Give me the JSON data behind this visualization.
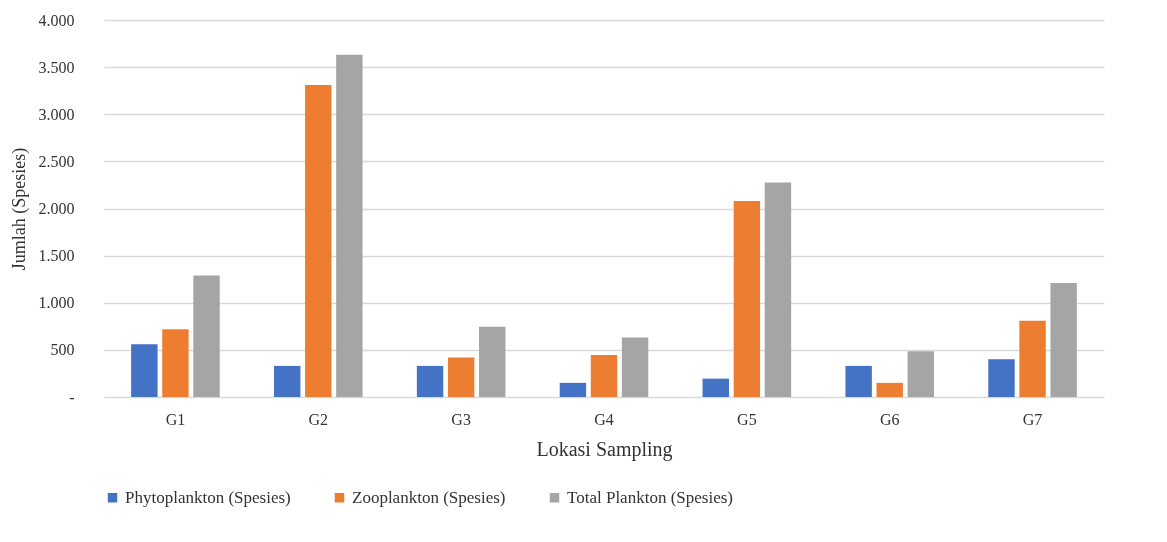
{
  "chart_data": {
    "type": "bar",
    "xlabel": "Lokasi Sampling",
    "ylabel": "Jumlah (Spesies)",
    "categories": [
      "G1",
      "G2",
      "G3",
      "G4",
      "G5",
      "G6",
      "G7"
    ],
    "series": [
      {
        "name": "Phytoplankton (Spesies)",
        "color": "#4472c4",
        "values": [
          560,
          330,
          330,
          150,
          195,
          330,
          400
        ]
      },
      {
        "name": "Zooplankton (Spesies)",
        "color": "#ed7d31",
        "values": [
          720,
          3310,
          420,
          445,
          2080,
          150,
          810
        ]
      },
      {
        "name": "Total Plankton (Spesies)",
        "color": "#a5a5a5",
        "values": [
          1290,
          3630,
          745,
          630,
          2275,
          485,
          1210
        ]
      }
    ],
    "ylim": [
      0,
      4000
    ],
    "yticks": [
      {
        "value": 0,
        "label": "-"
      },
      {
        "value": 500,
        "label": "500"
      },
      {
        "value": 1000,
        "label": "1.000"
      },
      {
        "value": 1500,
        "label": "1.500"
      },
      {
        "value": 2000,
        "label": "2.000"
      },
      {
        "value": 2500,
        "label": "2.500"
      },
      {
        "value": 3000,
        "label": "3.000"
      },
      {
        "value": 3500,
        "label": "3.500"
      },
      {
        "value": 4000,
        "label": "4.000"
      }
    ],
    "grid": "y",
    "legend": "bottom"
  }
}
